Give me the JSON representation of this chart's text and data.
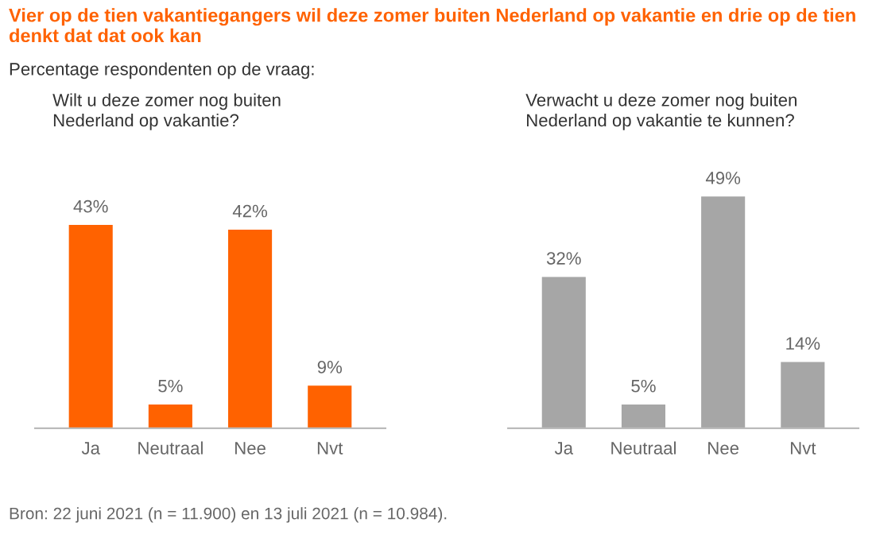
{
  "chart_data": [
    {
      "type": "bar",
      "title": "Vier op de tien vakantiegangers wil deze zomer buiten Nederland op vakantie en drie op de tien denkt dat dat ook kan",
      "subtitle": "Percentage respondenten op de vraag:",
      "annotations": [
        "Wilt u deze zomer nog buiten Nederland op vakantie?"
      ],
      "categories": [
        "Ja",
        "Neutraal",
        "Nee",
        "Nvt"
      ],
      "values": [
        43,
        5,
        42,
        9
      ],
      "value_labels": [
        "43%",
        "5%",
        "42%",
        "9%"
      ],
      "color": "#ff6200",
      "grid": false,
      "legend": false
    },
    {
      "type": "bar",
      "title": "Verwacht u deze zomer nog buiten Nederland op vakantie te kunnen?",
      "annotations": [
        "Bron: 22 juni 2021 (n = 11.900) en 13 juli 2021 (n = 10.984)."
      ],
      "categories": [
        "Ja",
        "Neutraal",
        "Nee",
        "Nvt"
      ],
      "values": [
        32,
        5,
        49,
        14
      ],
      "value_labels": [
        "32%",
        "5%",
        "49%",
        "14%"
      ],
      "color": "#a6a6a6",
      "grid": false,
      "legend": false
    }
  ]
}
